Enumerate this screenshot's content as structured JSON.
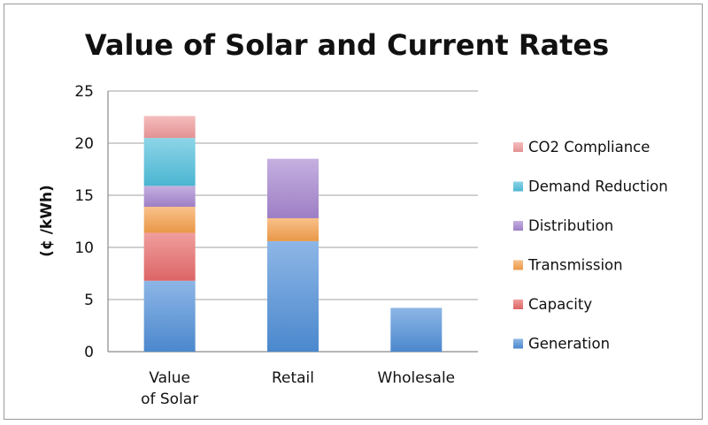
{
  "chart_data": {
    "type": "bar",
    "stacked": true,
    "title": "Value of Solar and Current Rates",
    "xlabel": "",
    "ylabel": "(¢ /kWh)",
    "ylim": [
      0,
      25
    ],
    "yticks": [
      0,
      5,
      10,
      15,
      20,
      25
    ],
    "grid": true,
    "legend_position": "right",
    "categories": [
      [
        "Value",
        "of Solar"
      ],
      [
        "Retail"
      ],
      [
        "Wholesale"
      ]
    ],
    "series": [
      {
        "name": "Generation",
        "color": "#4f8fd8",
        "values": [
          6.8,
          10.6,
          4.2
        ]
      },
      {
        "name": "Capacity",
        "color": "#e86a6a",
        "values": [
          4.6,
          0,
          0
        ]
      },
      {
        "name": "Transmission",
        "color": "#f5a04b",
        "values": [
          2.5,
          2.2,
          0
        ]
      },
      {
        "name": "Distribution",
        "color": "#a585cf",
        "values": [
          2.0,
          5.7,
          0
        ]
      },
      {
        "name": "Demand Reduction",
        "color": "#4fbfdc",
        "values": [
          4.6,
          0,
          0
        ]
      },
      {
        "name": "CO2 Compliance",
        "color": "#f09a9a",
        "values": [
          2.1,
          0,
          0
        ]
      }
    ]
  }
}
